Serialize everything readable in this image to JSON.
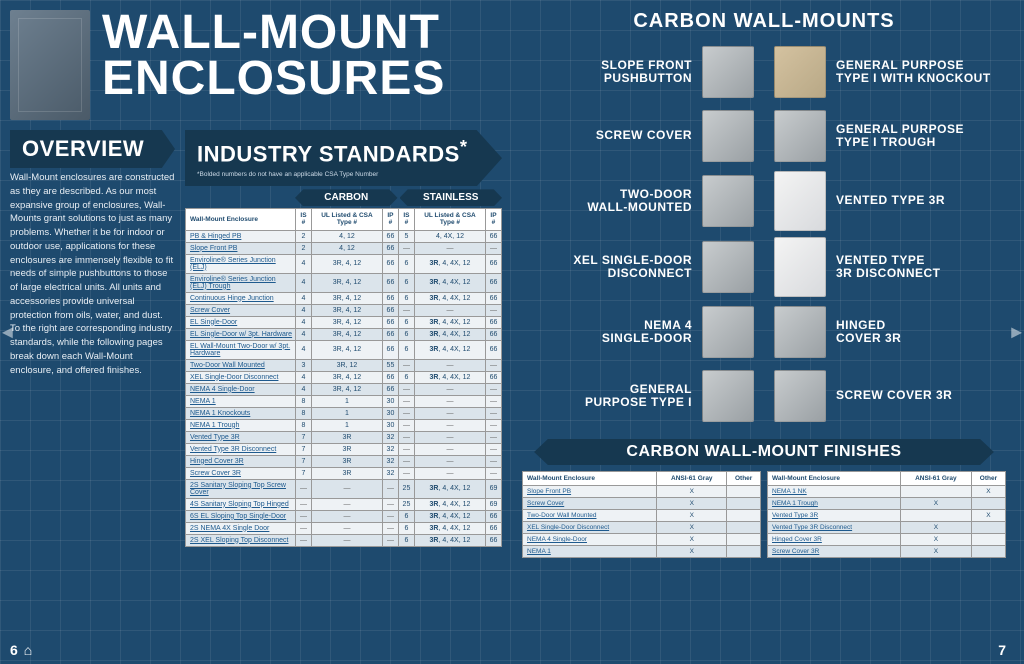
{
  "header": {
    "title_line1": "WALL-MOUNT",
    "title_line2": "ENCLOSURES"
  },
  "overview": {
    "heading": "OVERVIEW",
    "body": "Wall-Mount enclosures are constructed as they are described. As our most expansive group of enclosures, Wall-Mounts grant solutions to just as many problems. Whether it be for indoor or outdoor use, applications for these enclosures are immensely flexible to fit needs of simple pushbuttons to those of large electrical units. All units and accessories provide universal protection from oils, water, and dust. To the right are corresponding industry standards, while the following pages break down each Wall-Mount enclosure, and offered finishes."
  },
  "standards": {
    "heading": "INDUSTRY STANDARDS",
    "footnote": "*Bolded numbers do not have an applicable CSA Type Number",
    "group_headers": [
      "CARBON",
      "STAINLESS"
    ],
    "columns": [
      "Wall-Mount Enclosure",
      "IS #",
      "UL Listed & CSA Type #",
      "IP #",
      "IS #",
      "UL Listed & CSA Type #",
      "IP #"
    ],
    "rows": [
      {
        "name": "PB & Hinged PB",
        "c": [
          "2",
          "4, 12",
          "66",
          "5",
          "4, 4X, 12",
          "66"
        ],
        "alt": false
      },
      {
        "name": "Slope Front PB",
        "c": [
          "2",
          "4, 12",
          "66",
          "—",
          "—",
          "—"
        ],
        "alt": true
      },
      {
        "name": "Enviroline® Series Junction (ELJ)",
        "c": [
          "4",
          "3R, 4, 12",
          "66",
          "6",
          "3R, 4, 4X, 12",
          "66"
        ],
        "alt": false,
        "bold": [
          4
        ]
      },
      {
        "name": "Enviroline® Series Junction (ELJ) Trough",
        "c": [
          "4",
          "3R, 4, 12",
          "66",
          "6",
          "3R, 4, 4X, 12",
          "66"
        ],
        "alt": true,
        "bold": [
          4
        ]
      },
      {
        "name": "Continuous Hinge Junction",
        "c": [
          "4",
          "3R, 4, 12",
          "66",
          "6",
          "3R, 4, 4X, 12",
          "66"
        ],
        "alt": false,
        "bold": [
          4
        ]
      },
      {
        "name": "Screw Cover",
        "c": [
          "4",
          "3R, 4, 12",
          "66",
          "—",
          "—",
          "—"
        ],
        "alt": true
      },
      {
        "name": "EL Single-Door",
        "c": [
          "4",
          "3R, 4, 12",
          "66",
          "6",
          "3R, 4, 4X, 12",
          "66"
        ],
        "alt": false,
        "bold": [
          4
        ]
      },
      {
        "name": "EL Single-Door w/ 3pt. Hardware",
        "c": [
          "4",
          "3R, 4, 12",
          "66",
          "6",
          "3R, 4, 4X, 12",
          "66"
        ],
        "alt": true,
        "bold": [
          4
        ]
      },
      {
        "name": "EL Wall-Mount Two-Door w/ 3pt. Hardware",
        "c": [
          "4",
          "3R, 4, 12",
          "66",
          "6",
          "3R, 4, 4X, 12",
          "66"
        ],
        "alt": false,
        "bold": [
          4
        ]
      },
      {
        "name": "Two-Door Wall Mounted",
        "c": [
          "3",
          "3R, 12",
          "55",
          "—",
          "—",
          "—"
        ],
        "alt": true
      },
      {
        "name": "XEL Single-Door Disconnect",
        "c": [
          "4",
          "3R, 4, 12",
          "66",
          "6",
          "3R, 4, 4X, 12",
          "66"
        ],
        "alt": false,
        "bold": [
          4
        ]
      },
      {
        "name": "NEMA 4 Single-Door",
        "c": [
          "4",
          "3R, 4, 12",
          "66",
          "—",
          "—",
          "—"
        ],
        "alt": true
      },
      {
        "name": "NEMA 1",
        "c": [
          "8",
          "1",
          "30",
          "—",
          "—",
          "—"
        ],
        "alt": false
      },
      {
        "name": "NEMA 1 Knockouts",
        "c": [
          "8",
          "1",
          "30",
          "—",
          "—",
          "—"
        ],
        "alt": true
      },
      {
        "name": "NEMA 1 Trough",
        "c": [
          "8",
          "1",
          "30",
          "—",
          "—",
          "—"
        ],
        "alt": false
      },
      {
        "name": "Vented Type 3R",
        "c": [
          "7",
          "3R",
          "32",
          "—",
          "—",
          "—"
        ],
        "alt": true
      },
      {
        "name": "Vented Type 3R Disconnect",
        "c": [
          "7",
          "3R",
          "32",
          "—",
          "—",
          "—"
        ],
        "alt": false
      },
      {
        "name": "Hinged Cover 3R",
        "c": [
          "7",
          "3R",
          "32",
          "—",
          "—",
          "—"
        ],
        "alt": true
      },
      {
        "name": "Screw Cover 3R",
        "c": [
          "7",
          "3R",
          "32",
          "—",
          "—",
          "—"
        ],
        "alt": false
      },
      {
        "name": "2S Sanitary Sloping Top Screw Cover",
        "c": [
          "—",
          "—",
          "—",
          "25",
          "3R, 4, 4X, 12",
          "69"
        ],
        "alt": true,
        "bold": [
          4
        ]
      },
      {
        "name": "4S Sanitary Sloping Top Hinged",
        "c": [
          "—",
          "—",
          "—",
          "25",
          "3R, 4, 4X, 12",
          "69"
        ],
        "alt": false,
        "bold": [
          4
        ]
      },
      {
        "name": "6S EL Sloping Top Single-Door",
        "c": [
          "—",
          "—",
          "—",
          "6",
          "3R, 4, 4X, 12",
          "66"
        ],
        "alt": true,
        "bold": [
          4
        ]
      },
      {
        "name": "2S NEMA 4X Single Door",
        "c": [
          "—",
          "—",
          "—",
          "6",
          "3R, 4, 4X, 12",
          "66"
        ],
        "alt": false,
        "bold": [
          4
        ]
      },
      {
        "name": "2S XEL Sloping Top Disconnect",
        "c": [
          "—",
          "—",
          "—",
          "6",
          "3R, 4, 4X, 12",
          "66"
        ],
        "alt": true,
        "bold": [
          4
        ]
      }
    ]
  },
  "carbon_mounts": {
    "title": "CARBON WALL-MOUNTS",
    "products": [
      {
        "label_l1": "SLOPE FRONT",
        "label_l2": "PUSHBUTTON",
        "r_label_l1": "GENERAL PURPOSE",
        "r_label_l2": "TYPE I WITH KNOCKOUT",
        "l_style": "",
        "r_style": "tan"
      },
      {
        "label_l1": "SCREW COVER",
        "label_l2": "",
        "r_label_l1": "GENERAL PURPOSE",
        "r_label_l2": "TYPE I TROUGH",
        "l_style": "",
        "r_style": ""
      },
      {
        "label_l1": "TWO-DOOR",
        "label_l2": "WALL-MOUNTED",
        "r_label_l1": "VENTED TYPE 3R",
        "r_label_l2": "",
        "l_style": "",
        "r_style": "light tall"
      },
      {
        "label_l1": "XEL SINGLE-DOOR",
        "label_l2": "DISCONNECT",
        "r_label_l1": "VENTED TYPE",
        "r_label_l2": "3R DISCONNECT",
        "l_style": "",
        "r_style": "light tall"
      },
      {
        "label_l1": "NEMA 4",
        "label_l2": "SINGLE-DOOR",
        "r_label_l1": "HINGED",
        "r_label_l2": "COVER 3R",
        "l_style": "",
        "r_style": ""
      },
      {
        "label_l1": "GENERAL",
        "label_l2": "PURPOSE TYPE I",
        "r_label_l1": "SCREW COVER 3R",
        "r_label_l2": "",
        "l_style": "",
        "r_style": ""
      }
    ]
  },
  "finishes": {
    "title": "CARBON WALL-MOUNT FINISHES",
    "columns": [
      "Wall-Mount Enclosure",
      "ANSI-61 Gray",
      "Other"
    ],
    "left_rows": [
      {
        "name": "Slope Front PB",
        "gray": "X",
        "other": "",
        "alt": false
      },
      {
        "name": "Screw Cover",
        "gray": "X",
        "other": "",
        "alt": true
      },
      {
        "name": "Two-Door Wall Mounted",
        "gray": "X",
        "other": "",
        "alt": false
      },
      {
        "name": "XEL Single-Door Disconnect",
        "gray": "X",
        "other": "",
        "alt": true
      },
      {
        "name": "NEMA 4 Single-Door",
        "gray": "X",
        "other": "",
        "alt": false
      },
      {
        "name": "NEMA 1",
        "gray": "X",
        "other": "",
        "alt": true
      }
    ],
    "right_rows": [
      {
        "name": "NEMA 1 NK",
        "gray": "",
        "other": "X",
        "alt": false
      },
      {
        "name": "NEMA 1 Trough",
        "gray": "X",
        "other": "",
        "alt": true
      },
      {
        "name": "Vented Type 3R",
        "gray": "",
        "other": "X",
        "alt": false
      },
      {
        "name": "Vented Type 3R Disconnect",
        "gray": "X",
        "other": "",
        "alt": true
      },
      {
        "name": "Hinged Cover 3R",
        "gray": "X",
        "other": "",
        "alt": false
      },
      {
        "name": "Screw Cover 3R",
        "gray": "X",
        "other": "",
        "alt": true
      }
    ]
  },
  "pagination": {
    "left_num": "6",
    "right_num": "7"
  }
}
